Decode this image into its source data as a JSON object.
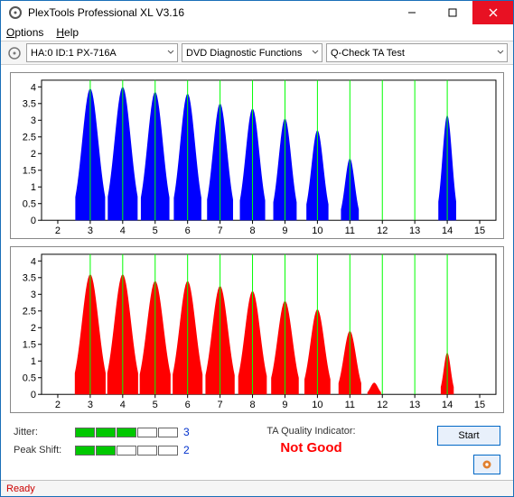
{
  "window": {
    "title": "PlexTools Professional XL V3.16"
  },
  "menu": {
    "options": "Options",
    "help": "Help"
  },
  "toolbar": {
    "drive": "HA:0 ID:1   PX-716A",
    "category": "DVD Diagnostic Functions",
    "test": "Q-Check TA Test"
  },
  "chart1": {
    "color": "#0000ff",
    "bg": "#ffffff",
    "grid": "#000000",
    "guide": "#00ff00",
    "xmin": 1.5,
    "xmax": 15.5,
    "ymin": 0,
    "ymax": 4.2,
    "xticks": [
      2,
      3,
      4,
      5,
      6,
      7,
      8,
      9,
      10,
      11,
      12,
      13,
      14,
      15
    ],
    "yticks": [
      0,
      0.5,
      1,
      1.5,
      2,
      2.5,
      3,
      3.5,
      4
    ],
    "peaks": [
      {
        "x": 3,
        "h": 3.95,
        "w": 0.92
      },
      {
        "x": 4,
        "h": 4.0,
        "w": 0.92
      },
      {
        "x": 5,
        "h": 3.85,
        "w": 0.88
      },
      {
        "x": 6,
        "h": 3.8,
        "w": 0.85
      },
      {
        "x": 7,
        "h": 3.5,
        "w": 0.8
      },
      {
        "x": 8,
        "h": 3.35,
        "w": 0.78
      },
      {
        "x": 9,
        "h": 3.05,
        "w": 0.72
      },
      {
        "x": 10,
        "h": 2.7,
        "w": 0.68
      },
      {
        "x": 11,
        "h": 1.85,
        "w": 0.55
      },
      {
        "x": 14,
        "h": 3.15,
        "w": 0.55
      }
    ]
  },
  "chart2": {
    "color": "#ff0000",
    "bg": "#ffffff",
    "grid": "#000000",
    "guide": "#00ff00",
    "xmin": 1.5,
    "xmax": 15.5,
    "ymin": 0,
    "ymax": 4.2,
    "xticks": [
      2,
      3,
      4,
      5,
      6,
      7,
      8,
      9,
      10,
      11,
      12,
      13,
      14,
      15
    ],
    "yticks": [
      0,
      0.5,
      1,
      1.5,
      2,
      2.5,
      3,
      3.5,
      4
    ],
    "peaks": [
      {
        "x": 3,
        "h": 3.6,
        "w": 0.95
      },
      {
        "x": 4,
        "h": 3.6,
        "w": 0.95
      },
      {
        "x": 5,
        "h": 3.4,
        "w": 0.95
      },
      {
        "x": 6,
        "h": 3.4,
        "w": 0.92
      },
      {
        "x": 7,
        "h": 3.25,
        "w": 0.9
      },
      {
        "x": 8,
        "h": 3.1,
        "w": 0.88
      },
      {
        "x": 9,
        "h": 2.8,
        "w": 0.85
      },
      {
        "x": 10,
        "h": 2.55,
        "w": 0.8
      },
      {
        "x": 11,
        "h": 1.9,
        "w": 0.7
      },
      {
        "x": 11.75,
        "h": 0.35,
        "w": 0.42
      },
      {
        "x": 14,
        "h": 1.25,
        "w": 0.4
      }
    ]
  },
  "quality": {
    "jitter_label": "Jitter:",
    "jitter_filled": 3,
    "jitter_total": 5,
    "jitter_value": "3",
    "peak_label": "Peak Shift:",
    "peak_filled": 2,
    "peak_total": 5,
    "peak_value": "2"
  },
  "indicator": {
    "label": "TA Quality Indicator:",
    "value": "Not Good",
    "color": "#ff0000"
  },
  "buttons": {
    "start": "Start"
  },
  "status": {
    "text": "Ready"
  },
  "colors": {
    "seg_on": "#00c800"
  }
}
